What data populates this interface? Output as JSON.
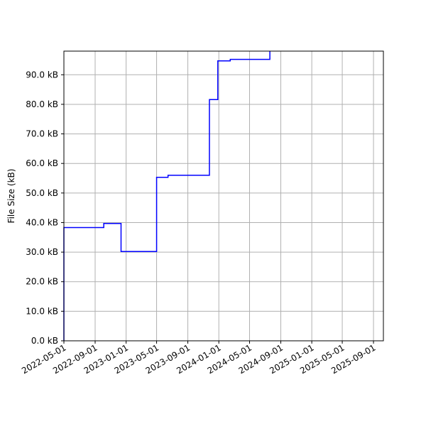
{
  "chart_data": {
    "type": "line",
    "title": "",
    "xlabel": "",
    "ylabel": "File Size (kB)",
    "xlim": [
      "2022-05-01",
      "2025-10-10"
    ],
    "ylim": [
      0,
      98
    ],
    "grid": true,
    "legend": "none",
    "line_color": "#0000ff",
    "x_ticks": [
      "2022-05-01",
      "2022-09-01",
      "2023-01-01",
      "2023-05-01",
      "2023-09-01",
      "2024-01-01",
      "2024-05-01",
      "2024-09-01",
      "2025-01-01",
      "2025-05-01",
      "2025-09-01"
    ],
    "y_ticks": [
      {
        "value": 0,
        "label": "0.0 kB"
      },
      {
        "value": 10,
        "label": "10.0 kB"
      },
      {
        "value": 20,
        "label": "20.0 kB"
      },
      {
        "value": 30,
        "label": "30.0 kB"
      },
      {
        "value": 40,
        "label": "40.0 kB"
      },
      {
        "value": 50,
        "label": "50.0 kB"
      },
      {
        "value": 60,
        "label": "60.0 kB"
      },
      {
        "value": 70,
        "label": "70.0 kB"
      },
      {
        "value": 80,
        "label": "80.0 kB"
      },
      {
        "value": 90,
        "label": "90.0 kB"
      }
    ],
    "series": [
      {
        "step": "post",
        "points": [
          {
            "x": "2022-05-01",
            "y": 0
          },
          {
            "x": "2022-05-01",
            "y": 38.3
          },
          {
            "x": "2022-10-05",
            "y": 39.7
          },
          {
            "x": "2022-12-12",
            "y": 30.2
          },
          {
            "x": "2023-05-01",
            "y": 55.3
          },
          {
            "x": "2023-06-15",
            "y": 56.0
          },
          {
            "x": "2023-11-25",
            "y": 81.6
          },
          {
            "x": "2023-12-28",
            "y": 94.7
          },
          {
            "x": "2024-02-15",
            "y": 95.2
          },
          {
            "x": "2024-07-20",
            "y": 98
          }
        ]
      }
    ]
  }
}
